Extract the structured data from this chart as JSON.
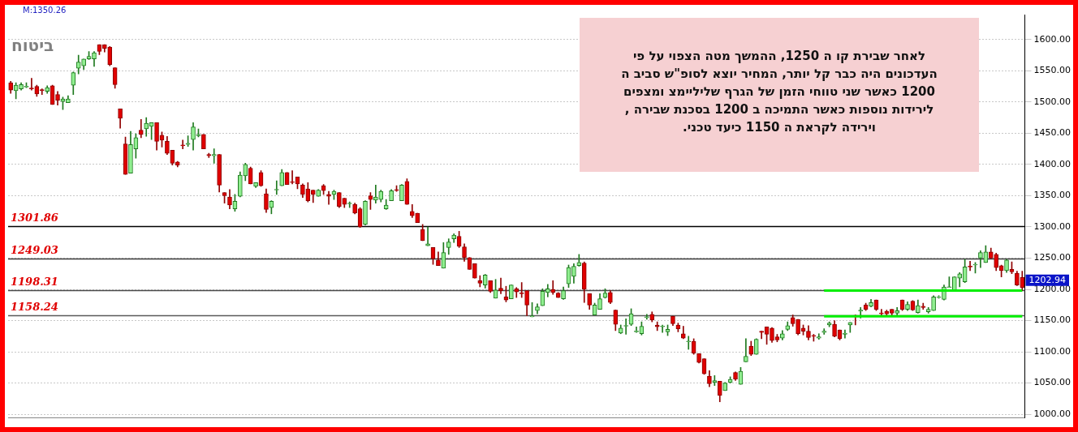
{
  "chart_data": {
    "type": "candlestick",
    "title": "ביטוח",
    "annotations": [
      "M:1350.26",
      "1202.94",
      "לאחר  שבירת קו ה 1250, ההמשך מטה הצפוי על פי\nהעדכונים היה כבר קל יותר, המחיר יוצא לסופ\"ש סביב ה\n1200 כאשר שני טווחי הזמן של הגרף שליליימצ ומצפים\nלירידות נוספות כאשר התמיכה ב 1200 בסכנת שבירה ,\nוירידה לקראת ה 1150 כיעד טכני."
    ],
    "categories": [
      null,
      null,
      null,
      null,
      null,
      null,
      null,
      null,
      null,
      null,
      null,
      null,
      null,
      null,
      null,
      null,
      null,
      null,
      null,
      null,
      null,
      null,
      null,
      null,
      null,
      null,
      null,
      null,
      null,
      null,
      null,
      null,
      null,
      null,
      null,
      null,
      null,
      null,
      null,
      null,
      null,
      null,
      null,
      null,
      null,
      null,
      null,
      null,
      null,
      null,
      null,
      null,
      null,
      null,
      null,
      null,
      null,
      null,
      null,
      null,
      null,
      null,
      null,
      null,
      null,
      null,
      null,
      null,
      null,
      null,
      null,
      null,
      null,
      null,
      null,
      null,
      null,
      null,
      null,
      null,
      null,
      null,
      null,
      null,
      null,
      null,
      null,
      null,
      null,
      null,
      null,
      null,
      null,
      null,
      null,
      null,
      null,
      null,
      null,
      null,
      null,
      null,
      null,
      null,
      null,
      null,
      null,
      null,
      null,
      null,
      null,
      null,
      null,
      null,
      null,
      null,
      null,
      null,
      null,
      null,
      null,
      null,
      null,
      null,
      null,
      null,
      null,
      null,
      null,
      null,
      null,
      null,
      null,
      null,
      null,
      null,
      null,
      null,
      null,
      null,
      null,
      null,
      null,
      null,
      null,
      null,
      null,
      null,
      null,
      null,
      null,
      null,
      null,
      null,
      null,
      null,
      null,
      null,
      null,
      null,
      null,
      null,
      null,
      null,
      null,
      null,
      null,
      null,
      null,
      null,
      null,
      null,
      null,
      null,
      null,
      null,
      null,
      null,
      null,
      null,
      null,
      null,
      null,
      null,
      null,
      null,
      null,
      null,
      null,
      null,
      null,
      null,
      null,
      null,
      null
    ],
    "ohlc": [
      [
        1531,
        1533,
        1514,
        1519
      ],
      [
        1518,
        1531,
        1505,
        1527
      ],
      [
        1521,
        1531,
        1519,
        1528
      ],
      [
        1524,
        1531,
        1523,
        1525
      ],
      [
        1522,
        1538,
        1519,
        1521
      ],
      [
        1525,
        1527,
        1509,
        1513
      ],
      [
        1520,
        1521,
        1512,
        1518
      ],
      [
        1517,
        1526,
        1514,
        1523
      ],
      [
        1526,
        1527,
        1496,
        1496
      ],
      [
        1512,
        1517,
        1495,
        1503
      ],
      [
        1501,
        1508,
        1488,
        1505
      ],
      [
        1499,
        1510,
        1499,
        1505
      ],
      [
        1527,
        1548,
        1512,
        1547
      ],
      [
        1554,
        1575,
        1545,
        1564
      ],
      [
        1558,
        1569,
        1552,
        1569
      ],
      [
        1569,
        1581,
        1568,
        1573
      ],
      [
        1569,
        1581,
        1557,
        1579
      ],
      [
        1592,
        1592,
        1576,
        1581
      ],
      [
        1592,
        1592,
        1580,
        1586
      ],
      [
        1588,
        1589,
        1558,
        1560
      ],
      [
        1555,
        1555,
        1522,
        1528
      ],
      [
        1489,
        1489,
        1458,
        1474
      ],
      [
        1433,
        1444,
        1384,
        1384
      ],
      [
        1386,
        1453,
        1386,
        1432
      ],
      [
        1425,
        1449,
        1410,
        1443
      ],
      [
        1455,
        1472,
        1443,
        1448
      ],
      [
        1457,
        1475,
        1445,
        1466
      ],
      [
        1461,
        1467,
        1440,
        1467
      ],
      [
        1467,
        1467,
        1423,
        1437
      ],
      [
        1447,
        1452,
        1428,
        1439
      ],
      [
        1437,
        1445,
        1416,
        1418
      ],
      [
        1423,
        1423,
        1399,
        1402
      ],
      [
        1404,
        1405,
        1396,
        1399
      ],
      [
        1431,
        1439,
        1425,
        1430
      ],
      [
        1432,
        1446,
        1429,
        1434
      ],
      [
        1440,
        1467,
        1423,
        1460
      ],
      [
        1446,
        1457,
        1444,
        1448
      ],
      [
        1448,
        1448,
        1425,
        1425
      ],
      [
        1416,
        1418,
        1411,
        1414
      ],
      [
        1414,
        1425,
        1402,
        1416
      ],
      [
        1416,
        1416,
        1356,
        1367
      ],
      [
        1355,
        1355,
        1338,
        1350
      ],
      [
        1348,
        1360,
        1329,
        1335
      ],
      [
        1329,
        1352,
        1325,
        1341
      ],
      [
        1349,
        1388,
        1348,
        1383
      ],
      [
        1382,
        1402,
        1374,
        1400
      ],
      [
        1394,
        1396,
        1369,
        1369
      ],
      [
        1365,
        1371,
        1363,
        1371
      ],
      [
        1387,
        1390,
        1365,
        1366
      ],
      [
        1353,
        1361,
        1323,
        1328
      ],
      [
        1331,
        1342,
        1321,
        1341
      ],
      [
        1359,
        1374,
        1352,
        1360
      ],
      [
        1366,
        1392,
        1366,
        1387
      ],
      [
        1387,
        1387,
        1368,
        1368
      ],
      [
        1372,
        1390,
        1369,
        1371
      ],
      [
        1380,
        1380,
        1361,
        1369
      ],
      [
        1367,
        1369,
        1347,
        1352
      ],
      [
        1361,
        1371,
        1340,
        1342
      ],
      [
        1359,
        1359,
        1339,
        1352
      ],
      [
        1349,
        1360,
        1349,
        1359
      ],
      [
        1366,
        1368,
        1352,
        1358
      ],
      [
        1352,
        1357,
        1336,
        1349
      ],
      [
        1352,
        1359,
        1344,
        1357
      ],
      [
        1355,
        1355,
        1331,
        1333
      ],
      [
        1346,
        1346,
        1331,
        1336
      ],
      [
        1337,
        1340,
        1331,
        1338
      ],
      [
        1336,
        1338,
        1321,
        1322
      ],
      [
        1329,
        1331,
        1299,
        1300
      ],
      [
        1304,
        1342,
        1303,
        1341
      ],
      [
        1350,
        1355,
        1328,
        1344
      ],
      [
        1343,
        1367,
        1338,
        1348
      ],
      [
        1344,
        1359,
        1340,
        1357
      ],
      [
        1329,
        1344,
        1328,
        1335
      ],
      [
        1342,
        1360,
        1342,
        1358
      ],
      [
        1360,
        1366,
        1357,
        1358
      ],
      [
        1342,
        1368,
        1342,
        1367
      ],
      [
        1373,
        1377,
        1336,
        1336
      ],
      [
        1325,
        1336,
        1315,
        1318
      ],
      [
        1322,
        1322,
        1307,
        1307
      ],
      [
        1296,
        1304,
        1278,
        1278
      ],
      [
        1270,
        1300,
        1270,
        1273
      ],
      [
        1267,
        1267,
        1240,
        1249
      ],
      [
        1247,
        1260,
        1238,
        1238
      ],
      [
        1234,
        1275,
        1234,
        1259
      ],
      [
        1267,
        1281,
        1256,
        1276
      ],
      [
        1281,
        1289,
        1275,
        1287
      ],
      [
        1285,
        1293,
        1267,
        1269
      ],
      [
        1268,
        1273,
        1245,
        1251
      ],
      [
        1251,
        1251,
        1232,
        1232
      ],
      [
        1241,
        1241,
        1218,
        1218
      ],
      [
        1214,
        1222,
        1204,
        1210
      ],
      [
        1207,
        1224,
        1202,
        1223
      ],
      [
        1214,
        1214,
        1195,
        1197
      ],
      [
        1186,
        1216,
        1186,
        1199
      ],
      [
        1202,
        1218,
        1193,
        1198
      ],
      [
        1188,
        1205,
        1180,
        1183
      ],
      [
        1185,
        1207,
        1185,
        1207
      ],
      [
        1201,
        1203,
        1187,
        1196
      ],
      [
        1194,
        1211,
        1187,
        1193
      ],
      [
        1198,
        1198,
        1158,
        1175
      ],
      [
        1156,
        1179,
        1156,
        1157
      ],
      [
        1166,
        1177,
        1161,
        1172
      ],
      [
        1174,
        1201,
        1174,
        1197
      ],
      [
        1195,
        1208,
        1188,
        1201
      ],
      [
        1200,
        1214,
        1192,
        1195
      ],
      [
        1194,
        1195,
        1187,
        1187
      ],
      [
        1185,
        1204,
        1184,
        1198
      ],
      [
        1209,
        1239,
        1203,
        1235
      ],
      [
        1221,
        1241,
        1210,
        1237
      ],
      [
        1238,
        1256,
        1237,
        1243
      ],
      [
        1242,
        1244,
        1179,
        1200
      ],
      [
        1193,
        1193,
        1168,
        1175
      ],
      [
        1159,
        1178,
        1159,
        1175
      ],
      [
        1168,
        1193,
        1168,
        1185
      ],
      [
        1187,
        1201,
        1186,
        1194
      ],
      [
        1195,
        1198,
        1177,
        1179
      ],
      [
        1167,
        1167,
        1134,
        1144
      ],
      [
        1130,
        1143,
        1129,
        1138
      ],
      [
        1141,
        1153,
        1128,
        1142
      ],
      [
        1144,
        1169,
        1142,
        1161
      ],
      [
        1132,
        1140,
        1131,
        1133
      ],
      [
        1129,
        1148,
        1127,
        1141
      ],
      [
        1155,
        1160,
        1152,
        1156
      ],
      [
        1160,
        1164,
        1148,
        1151
      ],
      [
        1143,
        1148,
        1134,
        1140
      ],
      [
        1140,
        1143,
        1131,
        1141
      ],
      [
        1132,
        1143,
        1126,
        1136
      ],
      [
        1157,
        1157,
        1142,
        1145
      ],
      [
        1143,
        1146,
        1132,
        1137
      ],
      [
        1129,
        1141,
        1121,
        1122
      ],
      [
        1116,
        1125,
        1104,
        1117
      ],
      [
        1117,
        1121,
        1096,
        1098
      ],
      [
        1097,
        1097,
        1082,
        1083
      ],
      [
        1089,
        1089,
        1064,
        1065
      ],
      [
        1061,
        1070,
        1044,
        1049
      ],
      [
        1051,
        1062,
        1046,
        1054
      ],
      [
        1053,
        1053,
        1020,
        1030
      ],
      [
        1038,
        1051,
        1038,
        1050
      ],
      [
        1051,
        1060,
        1050,
        1056
      ],
      [
        1067,
        1068,
        1054,
        1056
      ],
      [
        1048,
        1075,
        1048,
        1069
      ],
      [
        1084,
        1121,
        1084,
        1093
      ],
      [
        1109,
        1117,
        1094,
        1096
      ],
      [
        1096,
        1121,
        1096,
        1120
      ],
      [
        1133,
        1133,
        1121,
        1131
      ],
      [
        1140,
        1140,
        1112,
        1128
      ],
      [
        1138,
        1139,
        1115,
        1118
      ],
      [
        1124,
        1128,
        1116,
        1119
      ],
      [
        1122,
        1134,
        1119,
        1129
      ],
      [
        1136,
        1148,
        1134,
        1142
      ],
      [
        1155,
        1159,
        1141,
        1145
      ],
      [
        1152,
        1152,
        1127,
        1129
      ],
      [
        1138,
        1143,
        1127,
        1133
      ],
      [
        1133,
        1142,
        1119,
        1123
      ],
      [
        1126,
        1128,
        1117,
        1125
      ],
      [
        1122,
        1129,
        1120,
        1124
      ],
      [
        1131,
        1137,
        1128,
        1133
      ],
      [
        1143,
        1148,
        1140,
        1146
      ],
      [
        1144,
        1150,
        1124,
        1125
      ],
      [
        1135,
        1135,
        1119,
        1121
      ],
      [
        1128,
        1135,
        1122,
        1130
      ],
      [
        1143,
        1147,
        1131,
        1147
      ],
      [
        1158,
        1159,
        1143,
        1157
      ],
      [
        1165,
        1171,
        1154,
        1167
      ],
      [
        1175,
        1178,
        1166,
        1168
      ],
      [
        1173,
        1184,
        1172,
        1179
      ],
      [
        1183,
        1183,
        1166,
        1168
      ],
      [
        1162,
        1168,
        1159,
        1161
      ],
      [
        1165,
        1167,
        1158,
        1161
      ],
      [
        1168,
        1168,
        1159,
        1162
      ],
      [
        1162,
        1171,
        1159,
        1166
      ],
      [
        1183,
        1183,
        1166,
        1168
      ],
      [
        1168,
        1180,
        1166,
        1176
      ],
      [
        1181,
        1182,
        1166,
        1167
      ],
      [
        1163,
        1183,
        1162,
        1174
      ],
      [
        1173,
        1178,
        1168,
        1171
      ],
      [
        1164,
        1171,
        1162,
        1168
      ],
      [
        1166,
        1190,
        1166,
        1188
      ],
      [
        1187,
        1190,
        1186,
        1188
      ],
      [
        1184,
        1207,
        1183,
        1204
      ],
      [
        1203,
        1220,
        1203,
        1204
      ],
      [
        1199,
        1220,
        1199,
        1220
      ],
      [
        1218,
        1227,
        1204,
        1225
      ],
      [
        1212,
        1248,
        1211,
        1236
      ],
      [
        1237,
        1245,
        1230,
        1236
      ],
      [
        1239,
        1243,
        1226,
        1240
      ],
      [
        1250,
        1262,
        1235,
        1259
      ],
      [
        1243,
        1270,
        1243,
        1260
      ],
      [
        1260,
        1266,
        1249,
        1250
      ],
      [
        1256,
        1258,
        1230,
        1235
      ],
      [
        1238,
        1239,
        1220,
        1230
      ],
      [
        1230,
        1248,
        1227,
        1247
      ],
      [
        1232,
        1244,
        1225,
        1228
      ],
      [
        1226,
        1229,
        1206,
        1207
      ],
      [
        1219,
        1229,
        1198,
        1202.94
      ]
    ],
    "series": [
      {
        "type": "line",
        "color": "#00ee00",
        "values": [
          null,
          null,
          null,
          null,
          null,
          null,
          null,
          null,
          null,
          null,
          null,
          null,
          null,
          null,
          null,
          null,
          null,
          null,
          null,
          null,
          null,
          null,
          null,
          null,
          null,
          null,
          null,
          null,
          null,
          null,
          null,
          null,
          null,
          null,
          null,
          null,
          null,
          null,
          null,
          null,
          null,
          null,
          null,
          null,
          null,
          null,
          null,
          null,
          null,
          null,
          null,
          null,
          null,
          null,
          null,
          null,
          null,
          null,
          null,
          null,
          null,
          null,
          null,
          null,
          null,
          null,
          null,
          null,
          null,
          null,
          null,
          null,
          null,
          null,
          null,
          null,
          null,
          null,
          null,
          null,
          null,
          null,
          null,
          null,
          null,
          null,
          null,
          null,
          null,
          null,
          null,
          null,
          null,
          null,
          null,
          null,
          null,
          null,
          null,
          null,
          null,
          null,
          null,
          null,
          null,
          null,
          null,
          null,
          null,
          null,
          null,
          null,
          null,
          null,
          null,
          null,
          null,
          null,
          null,
          null,
          null,
          null,
          null,
          null,
          null,
          null,
          null,
          null,
          null,
          null,
          null,
          null,
          null,
          null,
          null,
          null,
          null,
          null,
          null,
          null,
          null,
          null,
          null,
          null,
          null,
          null,
          null,
          null,
          null,
          null,
          null,
          null,
          null,
          null,
          null,
          null,
          1198,
          1198,
          1198,
          1198,
          1198,
          1198,
          1198,
          1198,
          1198,
          1198,
          1198,
          1198,
          1198,
          1198,
          1198,
          1198,
          1198,
          1198,
          1198,
          1198,
          1198,
          1198,
          1198,
          1198,
          1198,
          1198,
          1198,
          1198,
          1198,
          1198,
          1198,
          1198,
          1198,
          1198,
          1198,
          1198,
          1198,
          1198,
          1198
        ]
      },
      {
        "type": "line",
        "color": "#00ee00",
        "values": [
          null,
          null,
          null,
          null,
          null,
          null,
          null,
          null,
          null,
          null,
          null,
          null,
          null,
          null,
          null,
          null,
          null,
          null,
          null,
          null,
          null,
          null,
          null,
          null,
          null,
          null,
          null,
          null,
          null,
          null,
          null,
          null,
          null,
          null,
          null,
          null,
          null,
          null,
          null,
          null,
          null,
          null,
          null,
          null,
          null,
          null,
          null,
          null,
          null,
          null,
          null,
          null,
          null,
          null,
          null,
          null,
          null,
          null,
          null,
          null,
          null,
          null,
          null,
          null,
          null,
          null,
          null,
          null,
          null,
          null,
          null,
          null,
          null,
          null,
          null,
          null,
          null,
          null,
          null,
          null,
          null,
          null,
          null,
          null,
          null,
          null,
          null,
          null,
          null,
          null,
          null,
          null,
          null,
          null,
          null,
          null,
          null,
          null,
          null,
          null,
          null,
          null,
          null,
          null,
          null,
          null,
          null,
          null,
          null,
          null,
          null,
          null,
          null,
          null,
          null,
          null,
          null,
          null,
          null,
          null,
          null,
          null,
          null,
          null,
          null,
          null,
          null,
          null,
          null,
          null,
          null,
          null,
          null,
          null,
          null,
          null,
          null,
          null,
          null,
          null,
          null,
          null,
          null,
          null,
          null,
          null,
          null,
          null,
          null,
          null,
          null,
          null,
          null,
          null,
          null,
          null,
          1157,
          1157,
          1157,
          1157,
          1157,
          1157,
          1157,
          1157,
          1157,
          1157,
          1157,
          1157,
          1157,
          1157,
          1157,
          1157,
          1157,
          1157,
          1157,
          1157,
          1157,
          1157,
          1157,
          1157,
          1157,
          1157,
          1157,
          1157,
          1157,
          1157,
          1157,
          1157,
          1157,
          1157,
          1157,
          1157,
          1157,
          1157,
          1157
        ]
      }
    ],
    "ref_lines": [
      {
        "axis": "y",
        "value": 1301.86,
        "label": "1301.86",
        "color": "#000000"
      },
      {
        "axis": "y",
        "value": 1249.03,
        "label": "1249.03",
        "color": "#3a3a3a"
      },
      {
        "axis": "y",
        "value": 1198.31,
        "label": "1198.31",
        "color": "#4a4a4a"
      },
      {
        "axis": "y",
        "value": 1158.24,
        "label": "1158.24",
        "color": "#5a5a5a"
      }
    ],
    "ylim": [
      995,
      1640
    ],
    "yticks": [
      {
        "value": 1000,
        "label": "1000.00"
      },
      {
        "value": 1050,
        "label": "1050.00"
      },
      {
        "value": 1100,
        "label": "1100.00"
      },
      {
        "value": 1150,
        "label": "1150.00"
      },
      {
        "value": 1200,
        "label": "1200.00"
      },
      {
        "value": 1250,
        "label": "1250.00"
      },
      {
        "value": 1300,
        "label": "1300.00"
      },
      {
        "value": 1350,
        "label": "1350.00"
      },
      {
        "value": 1400,
        "label": "1400.00"
      },
      {
        "value": 1450,
        "label": "1450.00"
      },
      {
        "value": 1500,
        "label": "1500.00"
      },
      {
        "value": 1550,
        "label": "1550.00"
      },
      {
        "value": 1600,
        "label": "1600.00"
      }
    ],
    "grid": "y",
    "legend": false,
    "tick_labels": "y",
    "marker": "none",
    "line_style": "solid"
  }
}
